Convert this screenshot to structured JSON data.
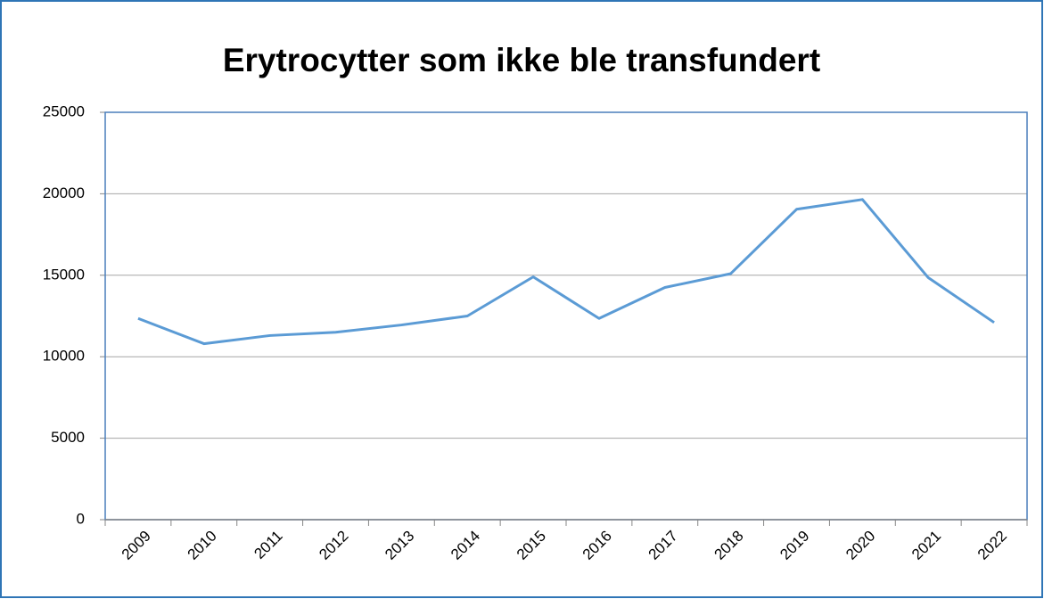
{
  "chart_data": {
    "type": "line",
    "title": "Erytrocytter som ikke ble transfundert",
    "categories": [
      "2009",
      "2010",
      "2011",
      "2012",
      "2013",
      "2014",
      "2015",
      "2016",
      "2017",
      "2018",
      "2019",
      "2020",
      "2021",
      "2022"
    ],
    "series": [
      {
        "name": "Erytrocytter",
        "color": "#5b9bd5",
        "values": [
          12350,
          10800,
          11300,
          11500,
          11950,
          12500,
          14900,
          12350,
          14250,
          15100,
          19050,
          19650,
          14850,
          12100
        ]
      }
    ],
    "ylim": [
      0,
      25000
    ],
    "yticks": [
      0,
      5000,
      10000,
      15000,
      20000,
      25000
    ],
    "grid": true,
    "legend": false
  }
}
